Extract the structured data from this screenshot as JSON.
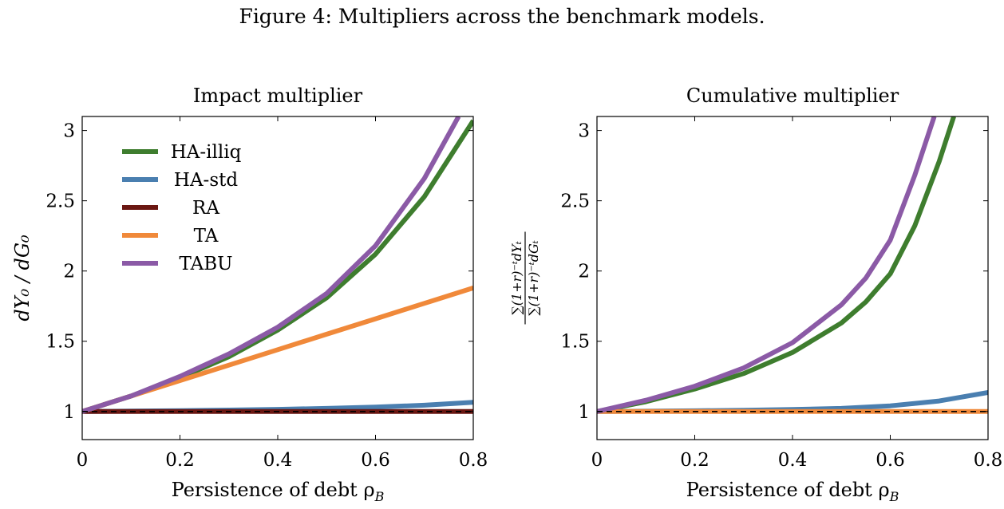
{
  "figure_title": "Figure 4: Multipliers across the benchmark models.",
  "chart_data": [
    {
      "type": "line",
      "title": "Impact multiplier",
      "xlabel": "Persistence of debt ρ",
      "xlabel_sub": "B",
      "ylabel": "dY₀ / dG₀",
      "xlim": [
        0,
        0.8
      ],
      "ylim": [
        0.8,
        3.1
      ],
      "xticks": [
        "0",
        "0.2",
        "0.4",
        "0.6",
        "0.8"
      ],
      "yticks": [
        "1",
        "1.5",
        "2",
        "2.5",
        "3"
      ],
      "legend": "top-left",
      "reference_line": 1,
      "x": [
        0,
        0.1,
        0.2,
        0.3,
        0.4,
        0.5,
        0.6,
        0.7,
        0.8
      ],
      "series": [
        {
          "name": "HA-illiq",
          "color": "#3e7d2e",
          "values": [
            1.0,
            1.11,
            1.24,
            1.39,
            1.58,
            1.81,
            2.12,
            2.53,
            3.07
          ]
        },
        {
          "name": "HA-std",
          "color": "#4a7fb0",
          "values": [
            1.0,
            1.003,
            1.006,
            1.01,
            1.015,
            1.022,
            1.031,
            1.045,
            1.065
          ]
        },
        {
          "name": "RA",
          "color": "#6b1712",
          "values": [
            1.0,
            1.0,
            1.0,
            1.0,
            1.0,
            1.0,
            1.0,
            1.0,
            1.0
          ]
        },
        {
          "name": "TA",
          "color": "#f0893a",
          "values": [
            1.0,
            1.11,
            1.22,
            1.33,
            1.44,
            1.55,
            1.66,
            1.77,
            1.88
          ]
        },
        {
          "name": "TABU",
          "color": "#8b5aa6",
          "x": [
            0,
            0.1,
            0.2,
            0.3,
            0.4,
            0.5,
            0.6,
            0.7,
            0.77
          ],
          "values": [
            1.0,
            1.11,
            1.25,
            1.41,
            1.6,
            1.84,
            2.18,
            2.66,
            3.1
          ]
        }
      ]
    },
    {
      "type": "line",
      "title": "Cumulative multiplier",
      "xlabel": "Persistence of debt ρ",
      "xlabel_sub": "B",
      "ylabel_num": "∑(1+r)⁻ᵗdYₜ",
      "ylabel_den": "∑(1+r)⁻ᵗdGₜ",
      "xlim": [
        0,
        0.8
      ],
      "ylim": [
        0.8,
        3.1
      ],
      "xticks": [
        "0",
        "0.2",
        "0.4",
        "0.6",
        "0.8"
      ],
      "yticks": [
        "1",
        "1.5",
        "2",
        "2.5",
        "3"
      ],
      "reference_line": 1,
      "series": [
        {
          "name": "HA-illiq",
          "color": "#3e7d2e",
          "x": [
            0,
            0.1,
            0.2,
            0.3,
            0.4,
            0.5,
            0.55,
            0.6,
            0.65,
            0.7,
            0.73
          ],
          "values": [
            1.0,
            1.07,
            1.16,
            1.27,
            1.42,
            1.63,
            1.78,
            1.98,
            2.32,
            2.78,
            3.1
          ]
        },
        {
          "name": "HA-std",
          "color": "#4a7fb0",
          "x": [
            0,
            0.1,
            0.2,
            0.3,
            0.4,
            0.5,
            0.6,
            0.7,
            0.8
          ],
          "values": [
            1.0,
            1.002,
            1.005,
            1.009,
            1.014,
            1.022,
            1.04,
            1.075,
            1.135
          ]
        },
        {
          "name": "TA",
          "color": "#f0893a",
          "x": [
            0,
            0.8
          ],
          "values": [
            1.0,
            1.0
          ]
        },
        {
          "name": "TABU",
          "color": "#8b5aa6",
          "x": [
            0,
            0.1,
            0.2,
            0.3,
            0.4,
            0.5,
            0.55,
            0.6,
            0.65,
            0.69
          ],
          "values": [
            1.0,
            1.08,
            1.18,
            1.31,
            1.49,
            1.76,
            1.95,
            2.22,
            2.68,
            3.1
          ]
        }
      ]
    }
  ]
}
